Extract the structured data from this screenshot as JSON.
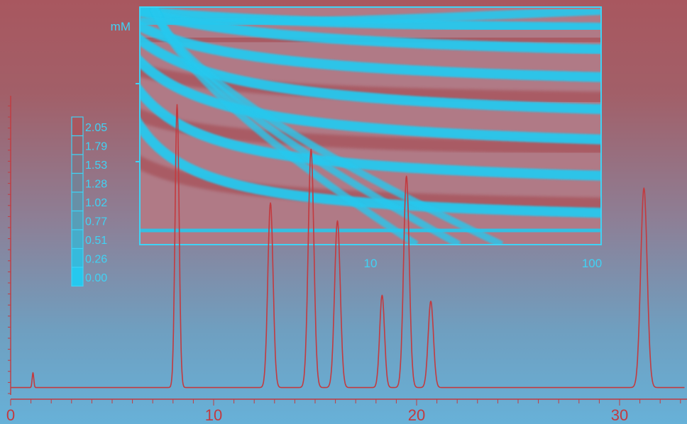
{
  "chart_data": [
    {
      "type": "line",
      "title": "",
      "xlabel": "",
      "ylabel": "",
      "xlim": [
        0,
        33
      ],
      "x_ticks": [
        0,
        10,
        20,
        30
      ],
      "grid": false,
      "baseline": 0.02,
      "peaks": [
        {
          "x": 1.1,
          "height": 0.05,
          "width": 0.04
        },
        {
          "x": 8.2,
          "height": 0.95,
          "width": 0.1
        },
        {
          "x": 12.8,
          "height": 0.62,
          "width": 0.13
        },
        {
          "x": 14.8,
          "height": 0.8,
          "width": 0.14
        },
        {
          "x": 16.1,
          "height": 0.56,
          "width": 0.14
        },
        {
          "x": 18.3,
          "height": 0.31,
          "width": 0.12
        },
        {
          "x": 19.5,
          "height": 0.71,
          "width": 0.14
        },
        {
          "x": 20.7,
          "height": 0.29,
          "width": 0.13
        },
        {
          "x": 31.2,
          "height": 0.67,
          "width": 0.16
        }
      ],
      "colors": {
        "line": "#c33a3f",
        "axis": "#c33a3f"
      }
    },
    {
      "type": "heatmap",
      "title": "",
      "ylabel": "mM",
      "xlabel": "",
      "x_ticks": [
        "10",
        "100"
      ],
      "colorscale": {
        "labels": [
          "2.05",
          "1.79",
          "1.53",
          "1.28",
          "1.02",
          "0.77",
          "0.51",
          "0.26",
          "0.00"
        ],
        "values": [
          2.05,
          1.79,
          1.53,
          1.28,
          1.02,
          0.77,
          0.51,
          0.26,
          0.0
        ]
      },
      "colors": {
        "high": "#a8575f",
        "low": "#26c8ee",
        "frame": "#3fd3f5"
      }
    }
  ]
}
